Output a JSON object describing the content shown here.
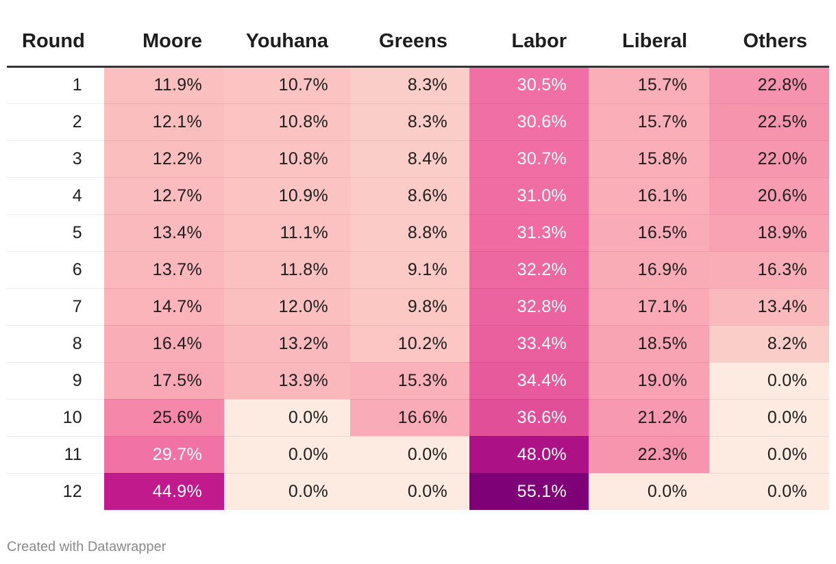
{
  "chart_data": {
    "type": "table",
    "columns": [
      "Round",
      "Moore",
      "Youhana",
      "Greens",
      "Labor",
      "Liberal",
      "Others"
    ],
    "rows": [
      {
        "round": "1",
        "values": [
          "11.9%",
          "10.7%",
          "8.3%",
          "30.5%",
          "15.7%",
          "22.8%"
        ]
      },
      {
        "round": "2",
        "values": [
          "12.1%",
          "10.8%",
          "8.3%",
          "30.6%",
          "15.7%",
          "22.5%"
        ]
      },
      {
        "round": "3",
        "values": [
          "12.2%",
          "10.8%",
          "8.4%",
          "30.7%",
          "15.8%",
          "22.0%"
        ]
      },
      {
        "round": "4",
        "values": [
          "12.7%",
          "10.9%",
          "8.6%",
          "31.0%",
          "16.1%",
          "20.6%"
        ]
      },
      {
        "round": "5",
        "values": [
          "13.4%",
          "11.1%",
          "8.8%",
          "31.3%",
          "16.5%",
          "18.9%"
        ]
      },
      {
        "round": "6",
        "values": [
          "13.7%",
          "11.8%",
          "9.1%",
          "32.2%",
          "16.9%",
          "16.3%"
        ]
      },
      {
        "round": "7",
        "values": [
          "14.7%",
          "12.0%",
          "9.8%",
          "32.8%",
          "17.1%",
          "13.4%"
        ]
      },
      {
        "round": "8",
        "values": [
          "16.4%",
          "13.2%",
          "10.2%",
          "33.4%",
          "18.5%",
          "8.2%"
        ]
      },
      {
        "round": "9",
        "values": [
          "17.5%",
          "13.9%",
          "15.3%",
          "34.4%",
          "19.0%",
          "0.0%"
        ]
      },
      {
        "round": "10",
        "values": [
          "25.6%",
          "0.0%",
          "16.6%",
          "36.6%",
          "21.2%",
          "0.0%"
        ]
      },
      {
        "round": "11",
        "values": [
          "29.7%",
          "0.0%",
          "0.0%",
          "48.0%",
          "22.3%",
          "0.0%"
        ]
      },
      {
        "round": "12",
        "values": [
          "44.9%",
          "0.0%",
          "0.0%",
          "55.1%",
          "0.0%",
          "0.0%"
        ]
      }
    ],
    "color_scale": {
      "type": "heatmap",
      "stops": [
        {
          "value": 0,
          "color": "#fdebe2"
        },
        {
          "value": 10,
          "color": "#fbc7c3"
        },
        {
          "value": 18,
          "color": "#f9a6b4"
        },
        {
          "value": 25,
          "color": "#f58aab"
        },
        {
          "value": 31,
          "color": "#f06da3"
        },
        {
          "value": 37,
          "color": "#e04d97"
        },
        {
          "value": 45,
          "color": "#c0198d"
        },
        {
          "value": 55,
          "color": "#7e0177"
        }
      ],
      "text_dark": "#1d1d1d",
      "text_light": "#ffffff"
    }
  },
  "footer": "Created with Datawrapper"
}
